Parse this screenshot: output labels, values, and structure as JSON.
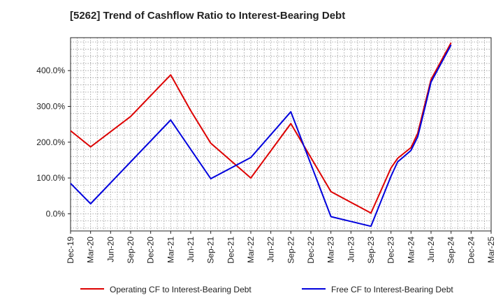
{
  "chart_data": {
    "type": "line",
    "title": "[5262]  Trend of Cashflow Ratio to Interest-Bearing Debt",
    "xlabel": "",
    "ylabel": "",
    "x": [
      "Dec-19",
      "Mar-20",
      "Jun-20",
      "Sep-20",
      "Dec-20",
      "Mar-21",
      "Jun-21",
      "Sep-21",
      "Dec-21",
      "Mar-22",
      "Jun-22",
      "Sep-22",
      "Dec-22",
      "Mar-23",
      "Jun-23",
      "Sep-23",
      "Dec-23",
      "Mar-24",
      "Jun-24",
      "Sep-24",
      "Dec-24",
      "Mar-25"
    ],
    "y_ticks": [
      0,
      100,
      200,
      300,
      400
    ],
    "y_tick_labels": [
      "0.0%",
      "100.0%",
      "200.0%",
      "300.0%",
      "400.0%"
    ],
    "ylim": [
      -48,
      492
    ],
    "grid": true,
    "legend_position": "bottom",
    "series": [
      {
        "name": "Operating CF to Interest-Bearing Debt",
        "color": "#dd0000",
        "points": [
          {
            "x": "Dec-19",
            "y": 232
          },
          {
            "x": "Mar-20",
            "y": 187
          },
          {
            "x": "Sep-20",
            "y": 272
          },
          {
            "x": "Mar-21",
            "y": 388
          },
          {
            "x": "Jun-21",
            "y": 288
          },
          {
            "x": "Sep-21",
            "y": 197
          },
          {
            "x": "Mar-22",
            "y": 100
          },
          {
            "x": "Sep-22",
            "y": 252
          },
          {
            "x": "Mar-23",
            "y": 62
          },
          {
            "x": "Sep-23",
            "y": 2
          },
          {
            "x": "Dec-23",
            "y": 128
          },
          {
            "x": "Jan-24",
            "y": 155
          },
          {
            "x": "Mar-24",
            "y": 185
          },
          {
            "x": "Apr-24",
            "y": 225
          },
          {
            "x": "Jun-24",
            "y": 375
          },
          {
            "x": "Sep-24",
            "y": 478
          }
        ]
      },
      {
        "name": "Free CF to Interest-Bearing Debt",
        "color": "#0000dd",
        "points": [
          {
            "x": "Dec-19",
            "y": 85
          },
          {
            "x": "Mar-20",
            "y": 28
          },
          {
            "x": "Mar-21",
            "y": 262
          },
          {
            "x": "Sep-21",
            "y": 98
          },
          {
            "x": "Mar-22",
            "y": 157
          },
          {
            "x": "Sep-22",
            "y": 285
          },
          {
            "x": "Mar-23",
            "y": -8
          },
          {
            "x": "Sep-23",
            "y": -35
          },
          {
            "x": "Dec-23",
            "y": 105
          },
          {
            "x": "Jan-24",
            "y": 145
          },
          {
            "x": "Mar-24",
            "y": 177
          },
          {
            "x": "Apr-24",
            "y": 215
          },
          {
            "x": "May-24",
            "y": 290
          },
          {
            "x": "Jun-24",
            "y": 368
          },
          {
            "x": "Sep-24",
            "y": 472
          }
        ]
      }
    ]
  }
}
